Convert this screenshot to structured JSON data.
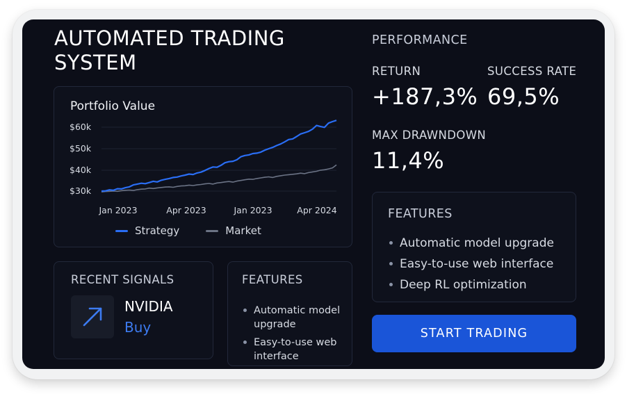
{
  "title": "AUTOMATED TRADING SYSTEM",
  "chart": {
    "title": "Portfolio Value"
  },
  "chart_data": {
    "type": "line",
    "title": "Portfolio Value",
    "x_tick_labels": [
      "Jan 2023",
      "Apr 2023",
      "Jan 2023",
      "Apr 2024"
    ],
    "y_tick_labels": [
      "$60k",
      "$50k",
      "$40k",
      "$30k"
    ],
    "ylim": [
      28000,
      63000
    ],
    "grid": true,
    "legend_placement": "bottom",
    "series": [
      {
        "name": "Strategy",
        "color": "#2a6ef5",
        "values": [
          30000,
          30100,
          30600,
          30400,
          31100,
          31000,
          31600,
          32000,
          32900,
          33300,
          33700,
          33500,
          34000,
          34600,
          34300,
          35100,
          35500,
          35900,
          36400,
          36600,
          37100,
          37500,
          38000,
          37800,
          38500,
          38900,
          39700,
          40600,
          41300,
          41200,
          42100,
          43300,
          43800,
          44000,
          44700,
          46100,
          46700,
          47000,
          47600,
          47800,
          48300,
          49200,
          49900,
          50500,
          51400,
          52100,
          53100,
          54200,
          54500,
          55600,
          56800,
          57400,
          58000,
          59100,
          60800,
          60300,
          59900,
          61900,
          62600,
          63200
        ]
      },
      {
        "name": "Market",
        "color": "#6b7385",
        "values": [
          29600,
          29800,
          29900,
          30000,
          29900,
          30200,
          30400,
          30500,
          30300,
          30700,
          30900,
          31000,
          31400,
          31200,
          31500,
          31700,
          31900,
          32000,
          31800,
          32200,
          32400,
          32500,
          32800,
          32600,
          32900,
          33100,
          33400,
          33600,
          33300,
          33800,
          34000,
          34300,
          34500,
          34200,
          34700,
          35000,
          35300,
          35600,
          35500,
          35900,
          36200,
          36500,
          36700,
          36400,
          36900,
          37200,
          37500,
          37700,
          37900,
          38100,
          38400,
          38200,
          38700,
          39000,
          39300,
          39800,
          40000,
          40400,
          40900,
          42300
        ]
      }
    ]
  },
  "signals": {
    "heading": "RECENT SIGNALS",
    "icon": "arrow-up-right-icon",
    "ticker": "NVIDIA",
    "action": "Buy"
  },
  "features_small": {
    "heading": "FEATURES",
    "items": [
      "Automatic model upgrade",
      "Easy-to-use web interface"
    ]
  },
  "performance": {
    "heading": "PERFORMANCE",
    "return_label": "RETURN",
    "return_value": "+187,3%",
    "success_label": "SUCCESS RATE",
    "success_value": "69,5%",
    "drawdown_label": "MAX DRAWNDOWN",
    "drawdown_value": "11,4%"
  },
  "features_large": {
    "heading": "FEATURES",
    "items": [
      "Automatic model upgrade",
      "Easy-to-use web interface",
      "Deep RL optimization"
    ]
  },
  "cta": {
    "label": "START TRADING"
  },
  "colors": {
    "background": "#0c0e18",
    "accent": "#1a55d8",
    "strategy_line": "#2a6ef5",
    "market_line": "#6b7385",
    "buy_text": "#3d7bf0"
  }
}
